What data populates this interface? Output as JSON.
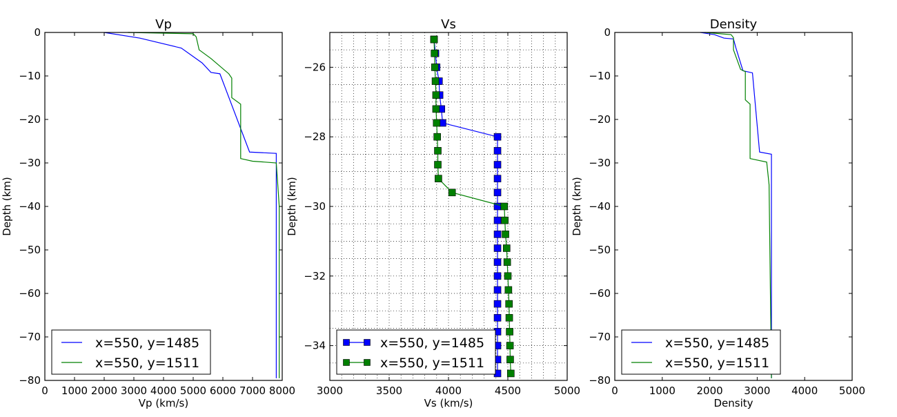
{
  "chart_data": [
    {
      "type": "line",
      "title": "Vp",
      "xlabel": "Vp (km/s)",
      "ylabel": "Depth (km)",
      "xlim": [
        0,
        8000
      ],
      "ylim": [
        -80,
        0
      ],
      "xticks": [
        0,
        1000,
        2000,
        3000,
        4000,
        5000,
        6000,
        7000,
        8000
      ],
      "yticks": [
        0,
        -10,
        -20,
        -30,
        -40,
        -50,
        -60,
        -70,
        -80
      ],
      "grid": false,
      "legend": "lower-left",
      "markers": false,
      "series": [
        {
          "name": "x=550, y=1485",
          "color": "#0000ff",
          "x": [
            2000,
            3200,
            4600,
            5300,
            5600,
            5900,
            6900,
            7800,
            7800,
            7800
          ],
          "y": [
            0,
            -1.3,
            -3.6,
            -7,
            -9.2,
            -9.5,
            -27.5,
            -27.8,
            -35,
            -79.5
          ]
        },
        {
          "name": "x=550, y=1511",
          "color": "#008000",
          "x": [
            2800,
            5000,
            5100,
            5200,
            5600,
            6200,
            6300,
            6300,
            6600,
            6600,
            7000,
            7800,
            7900,
            7900
          ],
          "y": [
            0,
            -0.3,
            -1,
            -4,
            -6,
            -9.5,
            -10.5,
            -15,
            -16.5,
            -29,
            -29.6,
            -30,
            -40,
            -79.5
          ]
        }
      ]
    },
    {
      "type": "line",
      "title": "Vs",
      "xlabel": "Vs (km/s)",
      "ylabel": "Depth (km)",
      "xlim": [
        3000,
        5000
      ],
      "ylim": [
        -35,
        -25
      ],
      "xticks": [
        3000,
        3500,
        4000,
        4500,
        5000
      ],
      "yticks": [
        -26,
        -28,
        -30,
        -32,
        -34
      ],
      "grid": true,
      "legend": "lower-left",
      "markers": true,
      "series": [
        {
          "name": "x=550, y=1485",
          "color": "#0000ff",
          "y": [
            -25.2,
            -25.6,
            -26.0,
            -26.4,
            -26.8,
            -27.2,
            -27.6,
            -28.0,
            -28.4,
            -28.8,
            -29.2,
            -29.6,
            -30.0,
            -30.4,
            -30.8,
            -31.2,
            -31.6,
            -32.0,
            -32.4,
            -32.8,
            -33.2,
            -33.6,
            -34.0,
            -34.4,
            -34.8
          ],
          "x": [
            3878,
            3890,
            3900,
            3920,
            3925,
            3940,
            3950,
            4413,
            4413,
            4413,
            4413,
            4413,
            4413,
            4413,
            4413,
            4413,
            4413,
            4413,
            4413,
            4413,
            4413,
            4413,
            4413,
            4413,
            4413
          ]
        },
        {
          "name": "x=550, y=1511",
          "color": "#008000",
          "y": [
            -25.2,
            -25.6,
            -26.0,
            -26.4,
            -26.8,
            -27.2,
            -27.6,
            -28.0,
            -28.4,
            -28.8,
            -29.2,
            -29.6,
            -30.0,
            -30.4,
            -30.8,
            -31.2,
            -31.6,
            -32.0,
            -32.4,
            -32.8,
            -33.2,
            -33.6,
            -34.0,
            -34.4,
            -34.8
          ],
          "x": [
            3878,
            3882,
            3885,
            3890,
            3895,
            3895,
            3900,
            3905,
            3910,
            3910,
            3915,
            4030,
            4470,
            4475,
            4480,
            4490,
            4495,
            4500,
            4505,
            4510,
            4512,
            4515,
            4518,
            4520,
            4525
          ]
        }
      ]
    },
    {
      "type": "line",
      "title": "Density",
      "xlabel": "Density",
      "ylabel": "Depth (km)",
      "xlim": [
        0,
        5000
      ],
      "ylim": [
        -80,
        0
      ],
      "xticks": [
        0,
        1000,
        2000,
        3000,
        4000,
        5000
      ],
      "yticks": [
        0,
        -10,
        -20,
        -30,
        -40,
        -50,
        -60,
        -70,
        -80
      ],
      "grid": false,
      "legend": "lower-left",
      "markers": false,
      "series": [
        {
          "name": "x=550, y=1485",
          "color": "#0000ff",
          "x": [
            1800,
            2100,
            2300,
            2500,
            2550,
            2700,
            2900,
            3050,
            3300,
            3300
          ],
          "y": [
            0,
            -0.5,
            -1.3,
            -1.5,
            -3.5,
            -8.8,
            -9.3,
            -27.5,
            -28,
            -79.5
          ]
        },
        {
          "name": "x=550, y=1511",
          "color": "#008000",
          "x": [
            1900,
            2450,
            2500,
            2500,
            2650,
            2750,
            2750,
            2850,
            2850,
            3200,
            3250,
            3300
          ],
          "y": [
            0,
            -0.5,
            -1.2,
            -4,
            -8.5,
            -9,
            -15.5,
            -16.5,
            -29,
            -29.8,
            -35,
            -79.5
          ]
        }
      ]
    }
  ]
}
